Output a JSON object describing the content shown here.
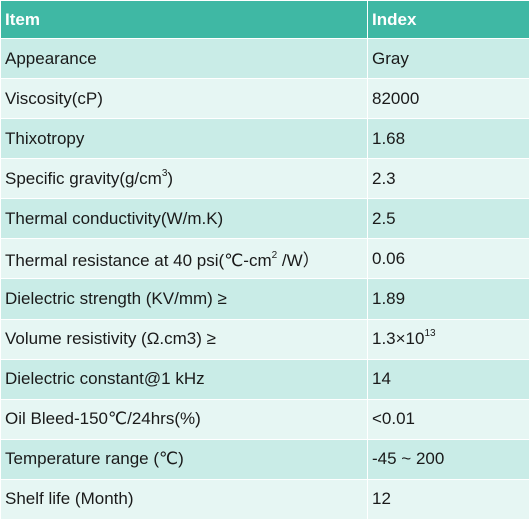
{
  "header": {
    "item": "Item",
    "index": "Index"
  },
  "rows": [
    {
      "item": "Appearance",
      "index": "Gray"
    },
    {
      "item": "Viscosity(cP)",
      "index": "82000"
    },
    {
      "item": "Thixotropy",
      "index": "1.68"
    },
    {
      "item_before_sup": "Specific gravity(g/cm",
      "item_sup": "3",
      "item_after_sup": ")",
      "index": "2.3"
    },
    {
      "item": "Thermal conductivity(W/m.K)",
      "index": "2.5"
    },
    {
      "item_before_sup": "Thermal resistance at 40 psi(℃-cm",
      "item_sup": "2",
      "item_after_sup": " /W）",
      "index": "0.06"
    },
    {
      "item": "Dielectric strength (KV/mm) ≥",
      "index": "1.89"
    },
    {
      "item": "Volume resistivity (Ω.cm3) ≥",
      "index_base": "1.3×10",
      "index_sup": "13"
    },
    {
      "item": "Dielectric constant@1 kHz",
      "index": "14"
    },
    {
      "item": "Oil Bleed-150℃/24hrs(%)",
      "index": "<0.01"
    },
    {
      "item": "Temperature range (℃)",
      "index": "-45 ~ 200"
    },
    {
      "item": "Shelf life (Month)",
      "index": "12"
    }
  ]
}
